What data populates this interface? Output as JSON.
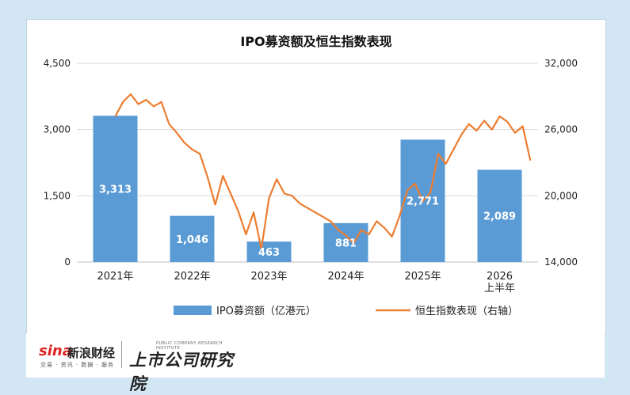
{
  "chart_data": {
    "type": "bar+line",
    "title": "IPO募资额及恒生指数表现",
    "categories": [
      "2021年",
      "2022年",
      "2023年",
      "2024年",
      "2025年",
      "2026 上半年"
    ],
    "category_lines": [
      [
        "2021年"
      ],
      [
        "2022年"
      ],
      [
        "2023年"
      ],
      [
        "2024年"
      ],
      [
        "2025年"
      ],
      [
        "2026",
        "上半年"
      ]
    ],
    "y_left": {
      "min": 0,
      "max": 4500,
      "ticks": [
        0,
        1500,
        3000,
        4500
      ],
      "tick_labels": [
        "0",
        "1,500",
        "3,000",
        "4,500"
      ]
    },
    "y_right": {
      "min": 14000,
      "max": 32000,
      "ticks": [
        14000,
        20000,
        26000,
        32000
      ],
      "tick_labels": [
        "14,000",
        "20,000",
        "26,000",
        "32,000"
      ]
    },
    "grid": true,
    "legend_position": "bottom",
    "series": [
      {
        "name": "IPO募资额（亿港元）",
        "type": "bar",
        "axis": "left",
        "color": "#5b9bd5",
        "values": [
          3313,
          1046,
          463,
          881,
          2771,
          2089
        ],
        "labels": [
          "3,313",
          "1,046",
          "463",
          "881",
          "2,771",
          "2,089"
        ]
      },
      {
        "name": "恒生指数表现（右轴）",
        "type": "line",
        "axis": "right",
        "color": "#ed7d31",
        "x": [
          0,
          0.1,
          0.2,
          0.3,
          0.4,
          0.5,
          0.6,
          0.7,
          0.8,
          0.9,
          1.0,
          1.1,
          1.2,
          1.3,
          1.4,
          1.5,
          1.6,
          1.7,
          1.8,
          1.9,
          2.0,
          2.1,
          2.2,
          2.3,
          2.4,
          2.5,
          2.6,
          2.7,
          2.8,
          2.9,
          3.0,
          3.1,
          3.2,
          3.3,
          3.4,
          3.5,
          3.6,
          3.7,
          3.8,
          3.9,
          4.0,
          4.1,
          4.2,
          4.3,
          4.4,
          4.5,
          4.6,
          4.7,
          4.8,
          4.9,
          5.0,
          5.1,
          5.2,
          5.3,
          5.4
        ],
        "values": [
          27200,
          28500,
          29200,
          28300,
          28700,
          28100,
          28500,
          26500,
          25700,
          24800,
          24200,
          23800,
          21700,
          19200,
          21800,
          20200,
          18600,
          16500,
          18500,
          15200,
          19800,
          21500,
          20200,
          20000,
          19300,
          18900,
          18500,
          18100,
          17700,
          16900,
          16400,
          15700,
          16900,
          16500,
          17700,
          17100,
          16300,
          18200,
          20500,
          21100,
          19500,
          20300,
          23800,
          22900,
          24200,
          25500,
          26500,
          25900,
          26800,
          26000,
          27200,
          26700,
          25700,
          26300,
          23200
        ]
      }
    ]
  },
  "watermark": {
    "sina_word": "sina",
    "sina_brand": "新浪财经",
    "sina_sub": "交易 · 资讯 · 数据 · 服务",
    "ssrc_small": "PUBLIC COMPANY RESEARCH INSTITUTE",
    "ssrc_main": "上市公司研究院"
  }
}
